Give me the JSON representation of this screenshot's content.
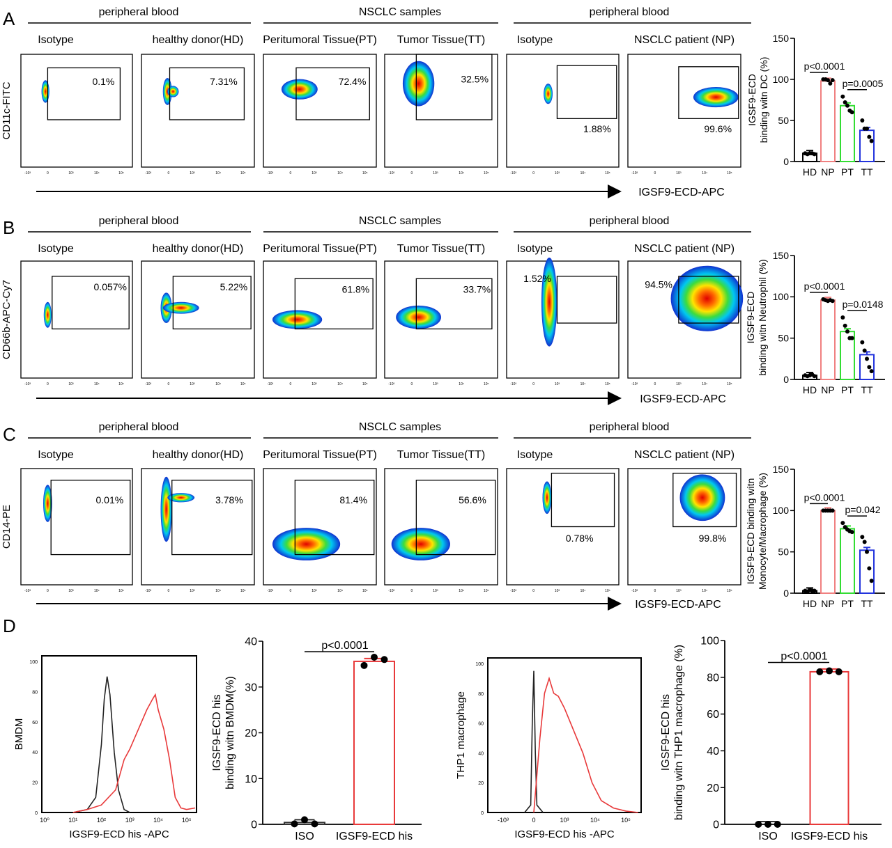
{
  "rows": [
    {
      "panel_label": "A",
      "groups": [
        "peripheral blood",
        "NSCLC samples",
        "peripheral blood"
      ],
      "plot_titles": [
        "Isotype",
        "healthy donor(HD)",
        "Peritumoral Tissue(PT)",
        "Tumor Tissue(TT)",
        "Isotype",
        "NSCLC patient  (NP)"
      ],
      "percentages": [
        "0.1%",
        "7.31%",
        "72.4%",
        "32.5%",
        "1.88%",
        "99.6%"
      ],
      "y_label": "CD11c-FITC",
      "x_label": "IGSF9-ECD-APC"
    },
    {
      "panel_label": "B",
      "groups": [
        "peripheral blood",
        "NSCLC samples",
        "peripheral blood"
      ],
      "plot_titles": [
        "Isotype",
        "healthy donor(HD)",
        "Peritumoral Tissue(PT)",
        "Tumor Tissue(TT)",
        "Isotype",
        "NSCLC patient  (NP)"
      ],
      "percentages": [
        "0.057%",
        "5.22%",
        "61.8%",
        "33.7%",
        "1.52%",
        "94.5%"
      ],
      "y_label": "CD66b-APC-Cy7",
      "x_label": "IGSF9-ECD-APC"
    },
    {
      "panel_label": "C",
      "groups": [
        "peripheral blood",
        "NSCLC samples",
        "peripheral blood"
      ],
      "plot_titles": [
        "Isotype",
        "healthy donor(HD)",
        "Peritumoral Tissue(PT)",
        "Tumor Tissue(TT)",
        "Isotype",
        "NSCLC patient  (NP)"
      ],
      "percentages": [
        "0.01%",
        "3.78%",
        "81.4%",
        "56.6%",
        "0.78%",
        "99.8%"
      ],
      "y_label": "CD14-PE",
      "x_label": "IGSF9-ECD-APC"
    }
  ],
  "flow_x_ticks": [
    "-10³",
    "0",
    "10³",
    "10⁴",
    "10⁵"
  ],
  "panel_d_label": "D",
  "colors": {
    "HD": "#000000",
    "NP": "#f08080",
    "PT": "#33dd33",
    "TT": "#2233dd",
    "red": "#e8393a",
    "black": "#222222"
  },
  "chart_data": [
    {
      "type": "bar",
      "panel": "A",
      "categories": [
        "HD",
        "NP",
        "PT",
        "TT"
      ],
      "values": [
        10,
        98,
        68,
        38
      ],
      "points": [
        [
          10,
          9,
          10,
          10,
          9
        ],
        [
          100,
          100,
          99,
          95,
          99
        ],
        [
          79,
          72,
          68,
          62,
          60
        ],
        [
          50,
          40,
          40,
          30,
          25
        ]
      ],
      "ylabel": [
        "IGSF9-ECD",
        "binding witn DC (%)"
      ],
      "ylim": [
        0,
        150
      ],
      "yticks": [
        "0",
        "50",
        "100",
        "150"
      ],
      "annotations": [
        {
          "text": "p<0.0001",
          "between": [
            "HD",
            "NP"
          ]
        },
        {
          "text": "p=0.0005",
          "between": [
            "PT",
            "TT"
          ]
        }
      ]
    },
    {
      "type": "bar",
      "panel": "B",
      "categories": [
        "HD",
        "NP",
        "PT",
        "TT"
      ],
      "values": [
        5,
        96,
        58,
        30
      ],
      "points": [
        [
          5,
          4,
          5,
          6,
          4
        ],
        [
          97,
          96,
          95,
          96,
          95
        ],
        [
          75,
          65,
          58,
          50,
          50
        ],
        [
          45,
          35,
          25,
          15,
          10
        ]
      ],
      "ylabel": [
        "IGSF9-ECD",
        "binding witn Neutrophil (%)"
      ],
      "ylim": [
        0,
        150
      ],
      "yticks": [
        "0",
        "50",
        "100",
        "150"
      ],
      "annotations": [
        {
          "text": "p<0.0001",
          "between": [
            "HD",
            "NP"
          ]
        },
        {
          "text": "p=0.0148",
          "between": [
            "PT",
            "TT"
          ]
        }
      ]
    },
    {
      "type": "bar",
      "panel": "C",
      "categories": [
        "HD",
        "NP",
        "PT",
        "TT"
      ],
      "values": [
        3,
        100,
        78,
        52
      ],
      "points": [
        [
          3,
          2,
          4,
          3,
          3
        ],
        [
          100,
          100,
          100,
          100,
          100
        ],
        [
          85,
          80,
          77,
          75,
          74
        ],
        [
          68,
          62,
          50,
          30,
          15
        ]
      ],
      "ylabel": [
        "IGSF9-ECD binding witn",
        "Monocyte/Macrophage (%)"
      ],
      "ylim": [
        0,
        150
      ],
      "yticks": [
        "0",
        "50",
        "100",
        "150"
      ],
      "annotations": [
        {
          "text": "p<0.0001",
          "between": [
            "HD",
            "NP"
          ]
        },
        {
          "text": "p=0.042",
          "between": [
            "PT",
            "TT"
          ]
        }
      ]
    },
    {
      "type": "line",
      "panel": "D-histogram-BMDM",
      "ylabel": "BMDM",
      "xlabel": "IGSF9-ECD his -APC",
      "xscale": "log",
      "xticks": [
        "10⁰",
        "10¹",
        "10²",
        "10³",
        "10⁴",
        "10⁵"
      ],
      "yticks": [
        "0",
        "20",
        "40",
        "60",
        "80",
        "100"
      ],
      "ylim": [
        0,
        100
      ],
      "series": [
        {
          "color": "black",
          "x": [
            1.0,
            1.5,
            1.8,
            2.0,
            2.1,
            2.2,
            2.3,
            2.45,
            2.6,
            2.8,
            3.0
          ],
          "y": [
            0,
            2,
            10,
            45,
            75,
            90,
            78,
            40,
            15,
            2,
            0
          ]
        },
        {
          "color": "red",
          "x": [
            1.0,
            1.5,
            2.0,
            2.5,
            2.8,
            3.0,
            3.3,
            3.6,
            3.8,
            3.9,
            4.0,
            4.2,
            4.4,
            4.6,
            4.8,
            5.0,
            5.3
          ],
          "y": [
            0,
            2,
            5,
            15,
            35,
            42,
            55,
            68,
            75,
            78,
            68,
            55,
            35,
            10,
            3,
            2,
            3
          ]
        }
      ]
    },
    {
      "type": "bar",
      "panel": "D-BMDM",
      "categories": [
        "ISO",
        "IGSF9-ECD his"
      ],
      "values": [
        0.4,
        35.6
      ],
      "points": [
        [
          0.1,
          1.0,
          0.1
        ],
        [
          34.7,
          36.5,
          36.0
        ]
      ],
      "ylabel": [
        "IGSF9-ECD his",
        "binding witn BMDM(%)"
      ],
      "ylim": [
        0,
        40
      ],
      "yticks": [
        "0",
        "10",
        "20",
        "30",
        "40"
      ],
      "annotations": [
        {
          "text": "p<0.0001",
          "between": [
            "ISO",
            "IGSF9-ECD his"
          ]
        }
      ]
    },
    {
      "type": "line",
      "panel": "D-histogram-THP1",
      "ylabel": "THP1 macrophage",
      "xlabel": "IGSF9-ECD his -APC",
      "xticks": [
        "-10³",
        "0",
        "10³",
        "10⁴",
        "10⁵"
      ],
      "yticks": [
        "0",
        "20",
        "40",
        "60",
        "80",
        "100"
      ],
      "ylim": [
        0,
        100
      ],
      "series": [
        {
          "color": "black",
          "x": [
            -0.3,
            -0.1,
            -0.05,
            0,
            0.05,
            0.1,
            0.3
          ],
          "y": [
            0,
            5,
            60,
            95,
            40,
            5,
            0
          ]
        },
        {
          "color": "red",
          "x": [
            0,
            0.2,
            0.35,
            0.5,
            0.65,
            0.8,
            1.0,
            1.3,
            1.6,
            1.9,
            2.2,
            2.6,
            3.0,
            3.4
          ],
          "y": [
            0,
            50,
            80,
            90,
            80,
            78,
            70,
            55,
            40,
            20,
            8,
            3,
            1,
            0
          ]
        }
      ]
    },
    {
      "type": "bar",
      "panel": "D-THP1",
      "categories": [
        "ISO",
        "IGSF9-ECD his"
      ],
      "values": [
        0,
        83
      ],
      "points": [
        [
          0,
          0,
          0
        ],
        [
          83,
          83.5,
          83
        ]
      ],
      "ylabel": [
        "IGSF9-ECD his",
        "binding witn THP1 macrophage (%)"
      ],
      "ylim": [
        0,
        100
      ],
      "yticks": [
        "0",
        "20",
        "40",
        "60",
        "80",
        "100"
      ],
      "annotations": [
        {
          "text": "p<0.0001",
          "between": [
            "ISO",
            "IGSF9-ECD his"
          ]
        }
      ]
    }
  ]
}
